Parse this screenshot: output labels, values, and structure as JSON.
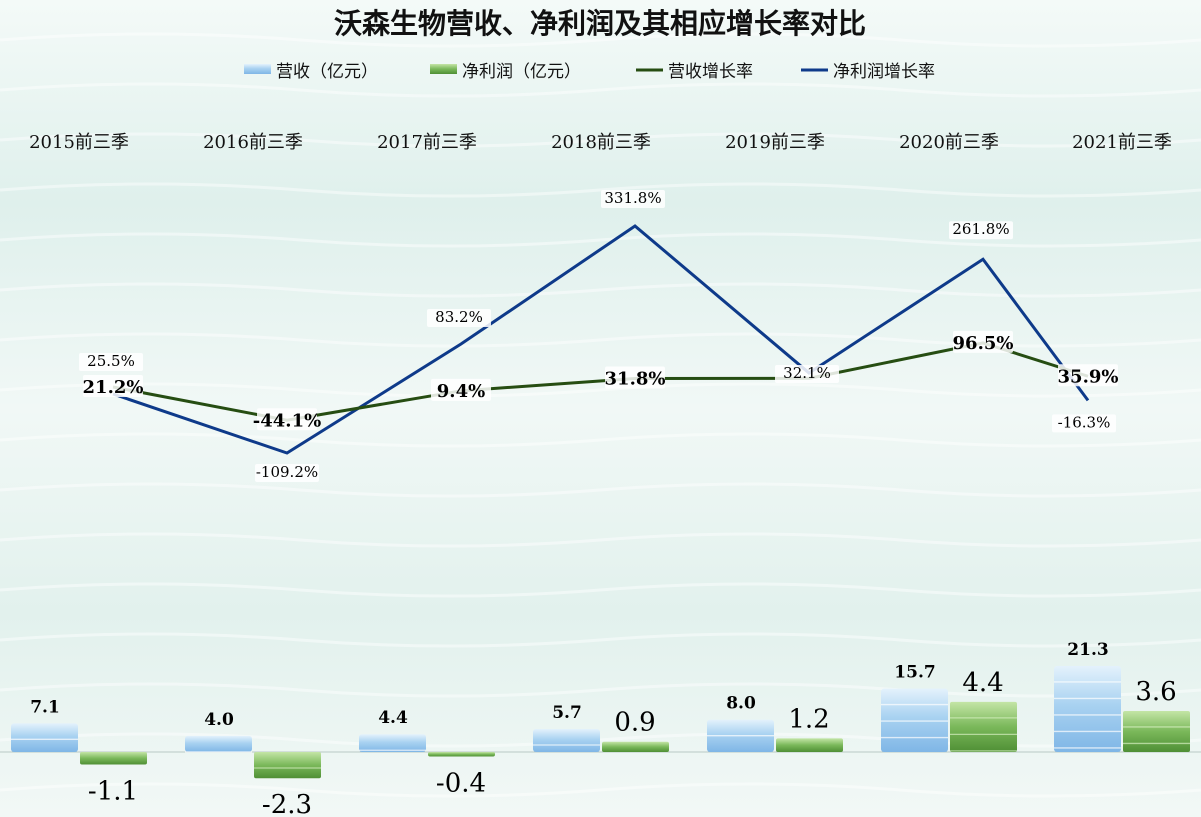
{
  "colors": {
    "background": "#eef6f3",
    "revenue_bar": "#a9d2f1",
    "profit_bar": "#7ab85a",
    "revenue_growth_line": "#264d12",
    "profit_growth_line": "#0e3a8a"
  },
  "chart_data": {
    "type": "bar",
    "title": "沃森生物营收、净利润及其相应增长率对比",
    "legend_position": "top",
    "grid": false,
    "categories": [
      "2015前三季",
      "2016前三季",
      "2017前三季",
      "2018前三季",
      "2019前三季",
      "2020前三季",
      "2021前三季"
    ],
    "series": [
      {
        "name": "营收（亿元）",
        "type": "bar",
        "values": [
          7.1,
          4.0,
          4.4,
          5.7,
          8.0,
          15.7,
          21.3
        ],
        "labels": [
          "7.1",
          "4.0",
          "4.4",
          "5.7",
          "8.0",
          "15.7",
          "21.3"
        ]
      },
      {
        "name": "净利润（亿元）",
        "type": "bar",
        "values": [
          -1.1,
          -2.3,
          -0.4,
          0.9,
          1.2,
          4.4,
          3.6
        ],
        "labels": [
          "-1.1",
          "-2.3",
          "-0.4",
          "0.9",
          "1.2",
          "4.4",
          "3.6"
        ]
      },
      {
        "name": "营收增长率",
        "type": "line",
        "values": [
          21.2,
          -44.1,
          9.4,
          31.8,
          32.1,
          96.5,
          35.9
        ],
        "labels": [
          "21.2%",
          "-44.1%",
          "9.4%",
          "31.8%",
          "",
          "96.5%",
          "35.9%"
        ]
      },
      {
        "name": "净利润增长率",
        "type": "line",
        "values": [
          25.5,
          -109.2,
          83.2,
          331.8,
          32.1,
          261.8,
          -16.3
        ],
        "labels": [
          "25.5%",
          "-109.2%",
          "83.2%",
          "331.8%",
          "32.1%",
          "261.8%",
          "-16.3%"
        ]
      }
    ]
  }
}
